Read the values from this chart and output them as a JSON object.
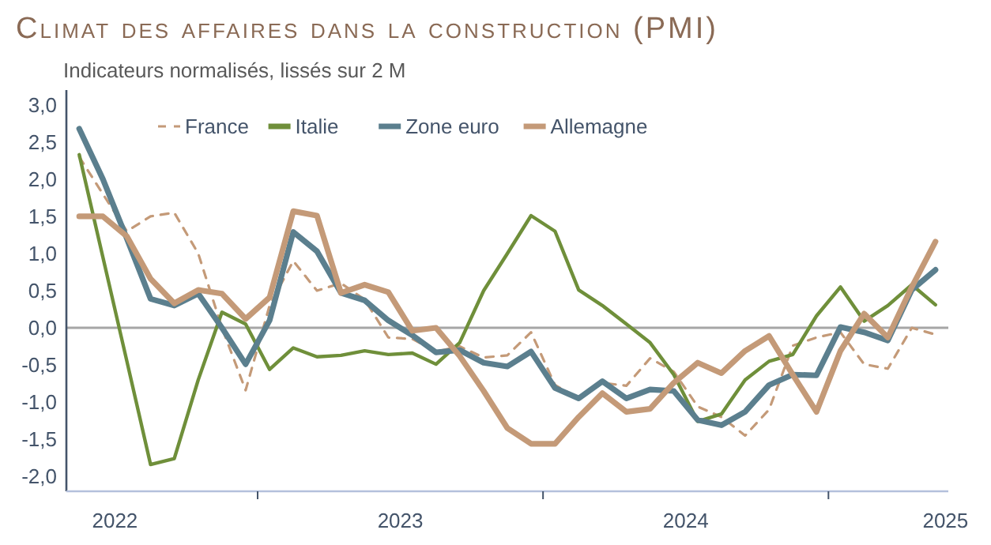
{
  "chart_data": {
    "type": "line",
    "title": "Climat des affaires dans la construction (PMI)",
    "subtitle": "Indicateurs normalisés, lissés sur 2 M",
    "x": [
      2022.375,
      2022.458,
      2022.542,
      2022.625,
      2022.708,
      2022.792,
      2022.875,
      2022.958,
      2023.042,
      2023.125,
      2023.208,
      2023.292,
      2023.375,
      2023.458,
      2023.542,
      2023.625,
      2023.708,
      2023.792,
      2023.875,
      2023.958,
      2024.042,
      2024.125,
      2024.208,
      2024.292,
      2024.375,
      2024.458,
      2024.542,
      2024.625,
      2024.708,
      2024.792,
      2024.875,
      2024.958,
      2025.042,
      2025.125,
      2025.208,
      2025.292,
      2025.375
    ],
    "series": [
      {
        "name": "France",
        "color": "#c49a78",
        "line_style": "dashed",
        "values": [
          2.3,
          1.8,
          1.3,
          1.5,
          1.55,
          1.0,
          0.0,
          -0.84,
          0.3,
          0.9,
          0.5,
          0.6,
          0.38,
          -0.13,
          -0.15,
          -0.32,
          -0.25,
          -0.4,
          -0.37,
          -0.06,
          -0.77,
          -0.95,
          -0.74,
          -0.78,
          -0.41,
          -0.59,
          -1.06,
          -1.2,
          -1.45,
          -1.1,
          -0.24,
          -0.13,
          -0.06,
          -0.49,
          -0.55,
          0.0,
          -0.09
        ]
      },
      {
        "name": "Italie",
        "color": "#6f8f3a",
        "values": [
          2.33,
          0.95,
          -0.45,
          -1.84,
          -1.76,
          -0.7,
          0.21,
          0.05,
          -0.56,
          -0.27,
          -0.39,
          -0.37,
          -0.31,
          -0.36,
          -0.34,
          -0.49,
          -0.2,
          0.5,
          1.0,
          1.51,
          1.3,
          0.51,
          0.3,
          0.05,
          -0.2,
          -0.63,
          -1.26,
          -1.16,
          -0.7,
          -0.45,
          -0.36,
          0.16,
          0.55,
          0.09,
          0.3,
          0.58,
          0.31
        ]
      },
      {
        "name": "Zone euro",
        "color": "#5b7f8e",
        "values": [
          2.68,
          2.0,
          1.2,
          0.39,
          0.3,
          0.46,
          0.0,
          -0.49,
          0.1,
          1.29,
          1.03,
          0.47,
          0.37,
          0.1,
          -0.1,
          -0.33,
          -0.3,
          -0.47,
          -0.52,
          -0.32,
          -0.81,
          -0.95,
          -0.72,
          -0.95,
          -0.83,
          -0.85,
          -1.24,
          -1.31,
          -1.13,
          -0.77,
          -0.63,
          -0.64,
          0.01,
          -0.06,
          -0.17,
          0.51,
          0.78
        ]
      },
      {
        "name": "Allemagne",
        "color": "#c49a78",
        "values": [
          1.5,
          1.5,
          1.23,
          0.66,
          0.33,
          0.51,
          0.46,
          0.12,
          0.41,
          1.57,
          1.51,
          0.47,
          0.58,
          0.48,
          -0.04,
          0.0,
          -0.38,
          -0.85,
          -1.35,
          -1.56,
          -1.56,
          -1.2,
          -0.88,
          -1.13,
          -1.09,
          -0.74,
          -0.47,
          -0.61,
          -0.31,
          -0.11,
          -0.63,
          -1.13,
          -0.31,
          0.19,
          -0.13,
          0.55,
          1.16
        ]
      }
    ],
    "xlim": [
      2022.33,
      2025.42
    ],
    "xticks": [
      {
        "value": 2022.5,
        "label": "2022"
      },
      {
        "value": 2023,
        "label": null
      },
      {
        "value": 2023.5,
        "label": "2023"
      },
      {
        "value": 2024,
        "label": null
      },
      {
        "value": 2024.5,
        "label": "2024"
      },
      {
        "value": 2025,
        "label": null
      },
      {
        "value": 2025.41,
        "label": "2025"
      }
    ],
    "ylim": [
      -2.2,
      3.2
    ],
    "yticks": [
      {
        "value": -2,
        "label": "-2,0"
      },
      {
        "value": -1.5,
        "label": "-1,5"
      },
      {
        "value": -1,
        "label": "-1,0"
      },
      {
        "value": -0.5,
        "label": "-0,5"
      },
      {
        "value": 0,
        "label": "0,0"
      },
      {
        "value": 0.5,
        "label": "0,5"
      },
      {
        "value": 1,
        "label": "1,0"
      },
      {
        "value": 1.5,
        "label": "1,5"
      },
      {
        "value": 2,
        "label": "2,0"
      },
      {
        "value": 2.5,
        "label": "2,5"
      },
      {
        "value": 3,
        "label": "3,0"
      }
    ],
    "ref_lines": [
      {
        "axis": "y",
        "value": 0,
        "color": "#a6a6a6"
      }
    ],
    "grid": false,
    "legend": "top",
    "line_style": "solid",
    "marker": "none"
  }
}
